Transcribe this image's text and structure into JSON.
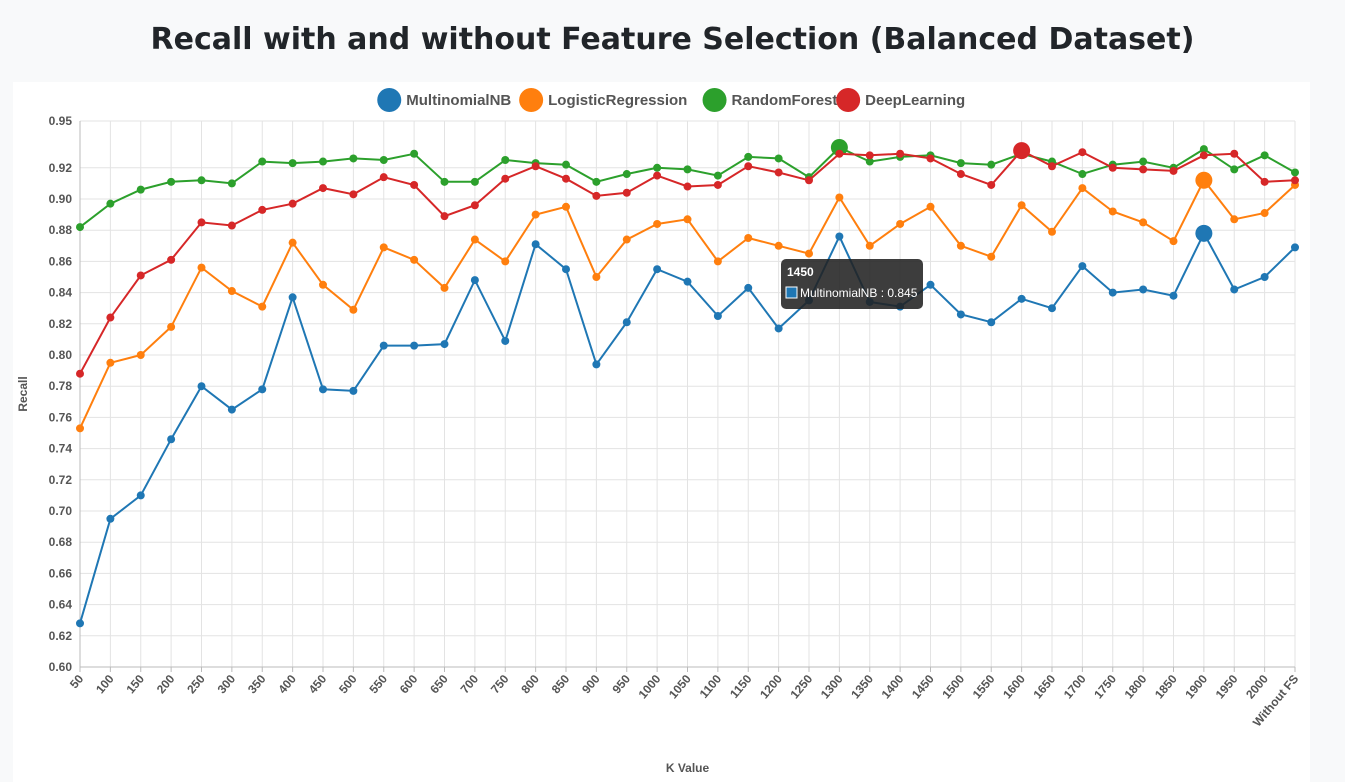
{
  "page": {
    "title": "Recall with and without Feature Selection (Balanced Dataset)"
  },
  "chart_data": {
    "type": "line",
    "title": "Recall with and without Feature Selection (Balanced Dataset)",
    "xlabel": "K Value",
    "ylabel": "Recall",
    "ylim": [
      0.6,
      0.95
    ],
    "yticks": [
      "0.95",
      "0.92",
      "0.90",
      "0.88",
      "0.86",
      "0.84",
      "0.82",
      "0.80",
      "0.78",
      "0.76",
      "0.74",
      "0.72",
      "0.70",
      "0.68",
      "0.66",
      "0.64",
      "0.62",
      "0.60"
    ],
    "grid": true,
    "legend_position": "top-center",
    "categories": [
      "50",
      "100",
      "150",
      "200",
      "250",
      "300",
      "350",
      "400",
      "450",
      "500",
      "550",
      "600",
      "650",
      "700",
      "750",
      "800",
      "850",
      "900",
      "950",
      "1000",
      "1050",
      "1100",
      "1150",
      "1200",
      "1250",
      "1300",
      "1350",
      "1400",
      "1450",
      "1500",
      "1550",
      "1600",
      "1650",
      "1700",
      "1750",
      "1800",
      "1850",
      "1900",
      "1950",
      "2000",
      "Without FS"
    ],
    "series": [
      {
        "name": "MultinomialNB",
        "color": "#1f77b4",
        "values": [
          0.628,
          0.695,
          0.71,
          0.746,
          0.78,
          0.765,
          0.778,
          0.837,
          0.778,
          0.777,
          0.806,
          0.806,
          0.807,
          0.848,
          0.809,
          0.871,
          0.855,
          0.794,
          0.821,
          0.855,
          0.847,
          0.825,
          0.843,
          0.817,
          0.835,
          0.876,
          0.834,
          0.831,
          0.845,
          0.826,
          0.821,
          0.836,
          0.83,
          0.857,
          0.84,
          0.842,
          0.838,
          0.878,
          0.842,
          0.85,
          0.869
        ],
        "highlight_index": 37
      },
      {
        "name": "LogisticRegression",
        "color": "#ff7f0e",
        "values": [
          0.753,
          0.795,
          0.8,
          0.818,
          0.856,
          0.841,
          0.831,
          0.872,
          0.845,
          0.829,
          0.869,
          0.861,
          0.843,
          0.874,
          0.86,
          0.89,
          0.895,
          0.85,
          0.874,
          0.884,
          0.887,
          0.86,
          0.875,
          0.87,
          0.865,
          0.901,
          0.87,
          0.884,
          0.895,
          0.87,
          0.863,
          0.896,
          0.879,
          0.907,
          0.892,
          0.885,
          0.873,
          0.912,
          0.887,
          0.891,
          0.909
        ],
        "highlight_index": 37
      },
      {
        "name": "RandomForest",
        "color": "#2ca02c",
        "values": [
          0.882,
          0.897,
          0.906,
          0.911,
          0.912,
          0.91,
          0.924,
          0.923,
          0.924,
          0.926,
          0.925,
          0.929,
          0.911,
          0.911,
          0.925,
          0.923,
          0.922,
          0.911,
          0.916,
          0.92,
          0.919,
          0.915,
          0.927,
          0.926,
          0.914,
          0.933,
          0.924,
          0.927,
          0.928,
          0.923,
          0.922,
          0.929,
          0.924,
          0.916,
          0.922,
          0.924,
          0.92,
          0.932,
          0.919,
          0.928,
          0.917
        ],
        "highlight_index": 25
      },
      {
        "name": "DeepLearning",
        "color": "#d62728",
        "values": [
          0.788,
          0.824,
          0.851,
          0.861,
          0.885,
          0.883,
          0.893,
          0.897,
          0.907,
          0.903,
          0.914,
          0.909,
          0.889,
          0.896,
          0.913,
          0.921,
          0.913,
          0.902,
          0.904,
          0.915,
          0.908,
          0.909,
          0.921,
          0.917,
          0.912,
          0.929,
          0.928,
          0.929,
          0.926,
          0.916,
          0.909,
          0.931,
          0.921,
          0.93,
          0.92,
          0.919,
          0.918,
          0.928,
          0.929,
          0.911,
          0.912
        ],
        "highlight_index": 31
      }
    ],
    "tooltip": {
      "title": "1450",
      "series_name": "MultinomialNB",
      "value_text": "MultinomialNB : 0.845"
    }
  }
}
